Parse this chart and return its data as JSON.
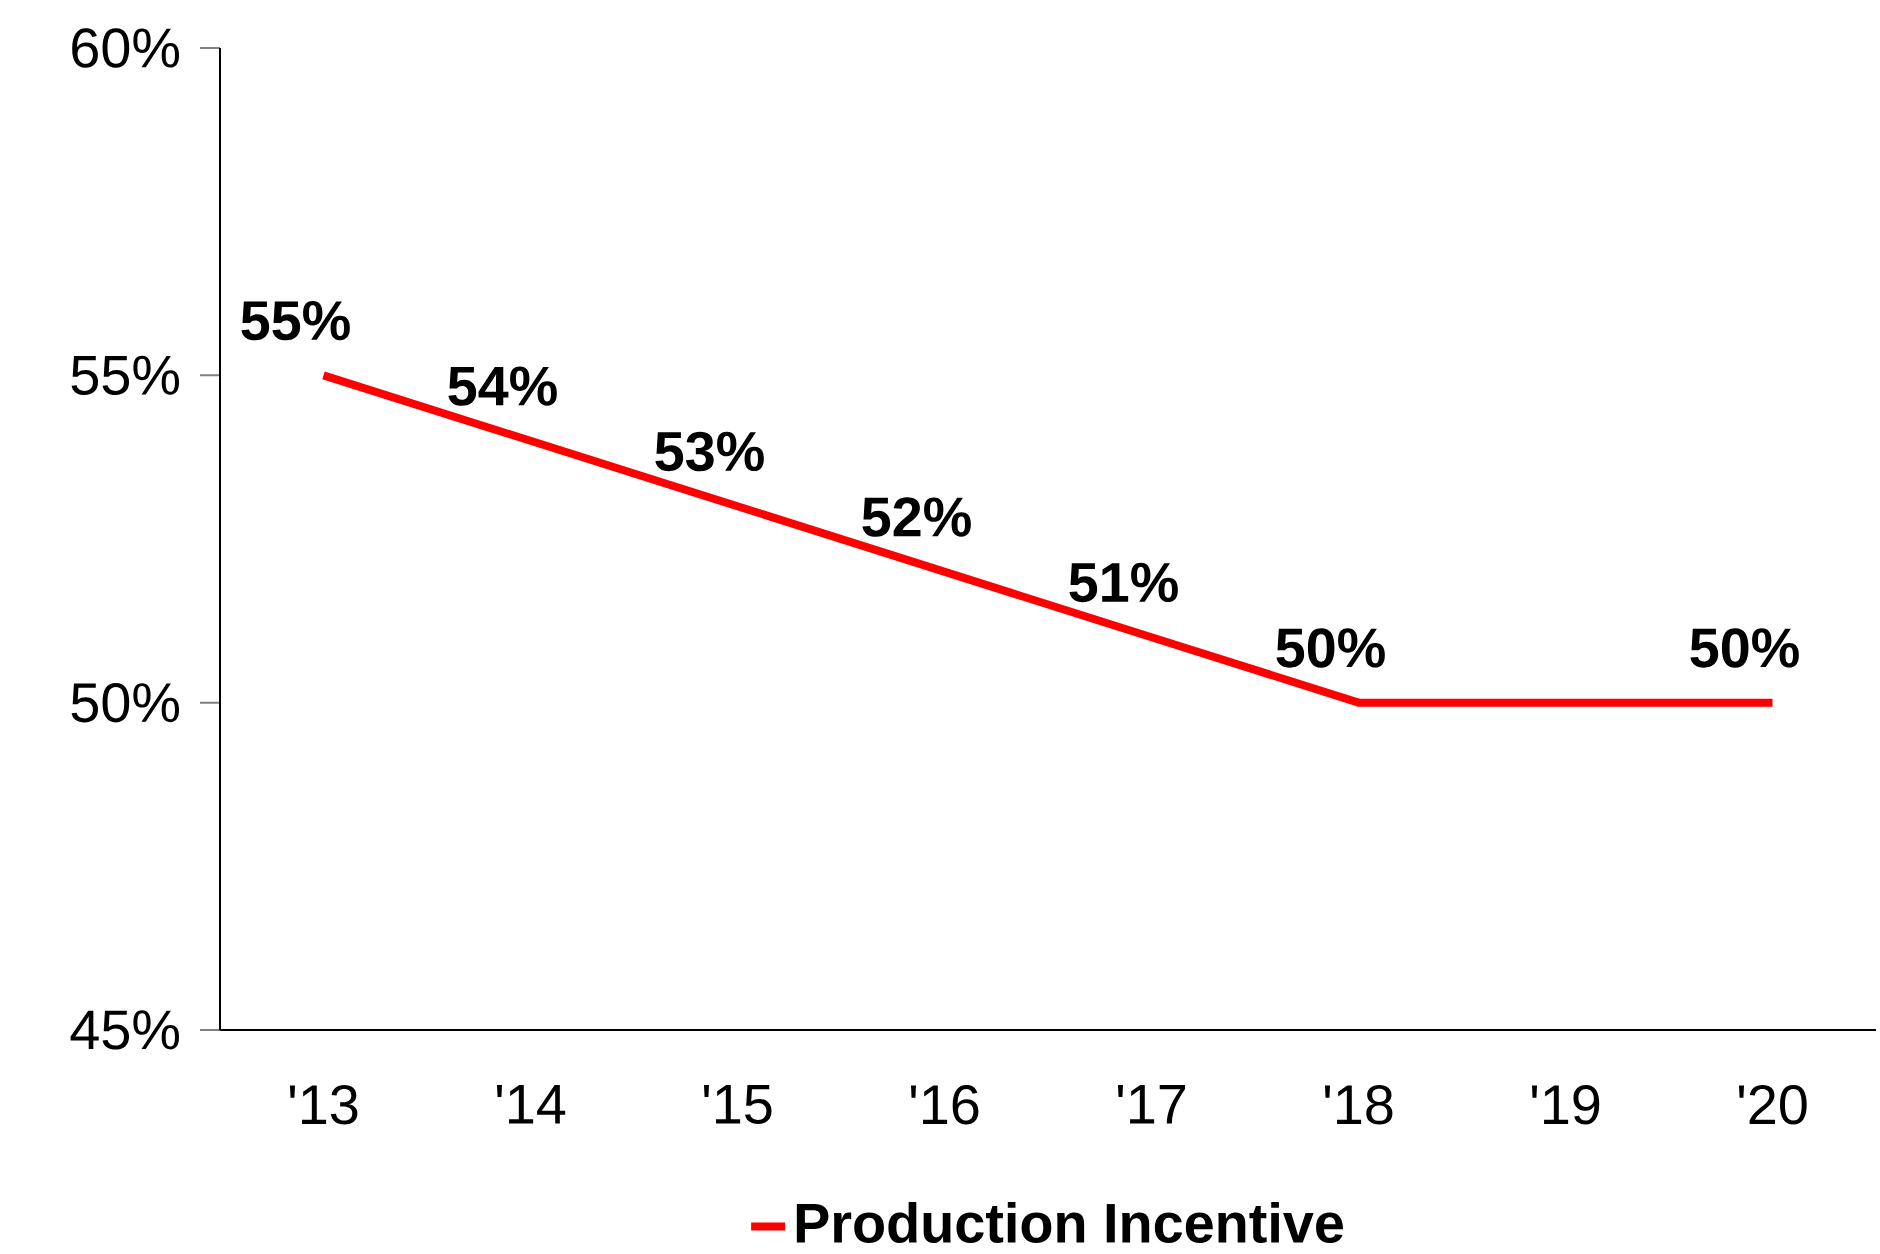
{
  "chart_data": {
    "type": "line",
    "categories": [
      "'13",
      "'14",
      "'15",
      "'16",
      "'17",
      "'18",
      "'19",
      "'20"
    ],
    "series": [
      {
        "name": "Production Incentive",
        "color": "#ff0000",
        "values": [
          55,
          54,
          53,
          52,
          51,
          50,
          50,
          50
        ],
        "value_labels": [
          "55%",
          "54%",
          "53%",
          "52%",
          "51%",
          "50%",
          null,
          "50%"
        ]
      }
    ],
    "ylim": [
      45,
      60
    ],
    "yticks": [
      {
        "value": 45,
        "label": "45%"
      },
      {
        "value": 50,
        "label": "50%"
      },
      {
        "value": 55,
        "label": "55%"
      },
      {
        "value": 60,
        "label": "60%"
      }
    ],
    "grid": false,
    "legend": "bottom",
    "marker": "none",
    "line_style": "solid"
  }
}
